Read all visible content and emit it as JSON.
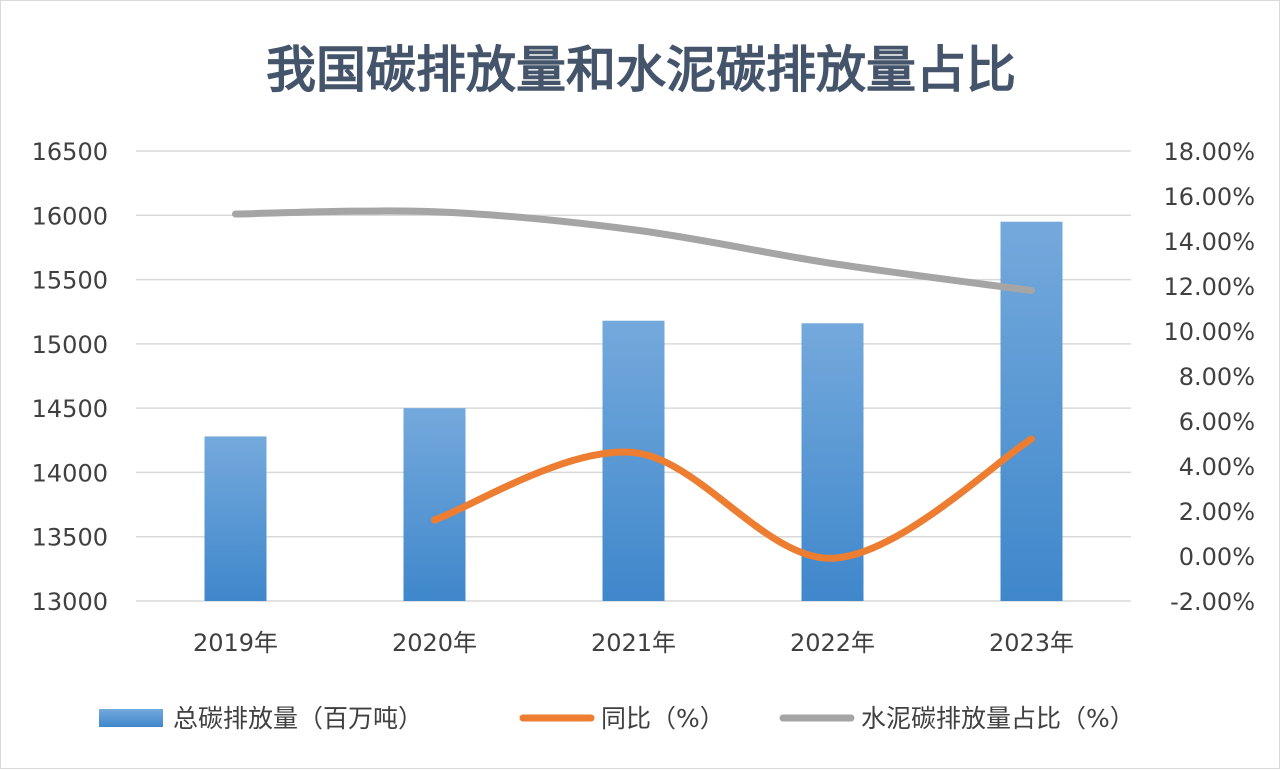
{
  "chart_data": {
    "type": "bar",
    "title": "我国碳排放量和水泥碳排放量占比",
    "categories": [
      "2019年",
      "2020年",
      "2021年",
      "2022年",
      "2023年"
    ],
    "y_left": {
      "min": 13000,
      "max": 16500,
      "step": 500,
      "ticks": [
        "13000",
        "13500",
        "14000",
        "14500",
        "15000",
        "15500",
        "16000",
        "16500"
      ]
    },
    "y_right": {
      "min": -2,
      "max": 18,
      "step": 2,
      "ticks": [
        "-2.00%",
        "0.00%",
        "2.00%",
        "4.00%",
        "6.00%",
        "8.00%",
        "10.00%",
        "12.00%",
        "14.00%",
        "16.00%",
        "18.00%"
      ]
    },
    "series": [
      {
        "name": "总碳排放量（百万吨）",
        "kind": "bar",
        "axis": "left",
        "color": "#5b9bd5",
        "values": [
          14280,
          14500,
          15180,
          15160,
          15950
        ]
      },
      {
        "name": "同比（%）",
        "kind": "line",
        "axis": "right",
        "color": "#ed7d31",
        "values": [
          null,
          1.6,
          4.6,
          -0.1,
          5.2
        ]
      },
      {
        "name": "水泥碳排放量占比（%）",
        "kind": "line",
        "axis": "right",
        "color": "#a5a5a5",
        "values": [
          15.2,
          15.3,
          14.5,
          13.0,
          11.8
        ]
      }
    ],
    "grid": true,
    "legend_position": "bottom"
  }
}
